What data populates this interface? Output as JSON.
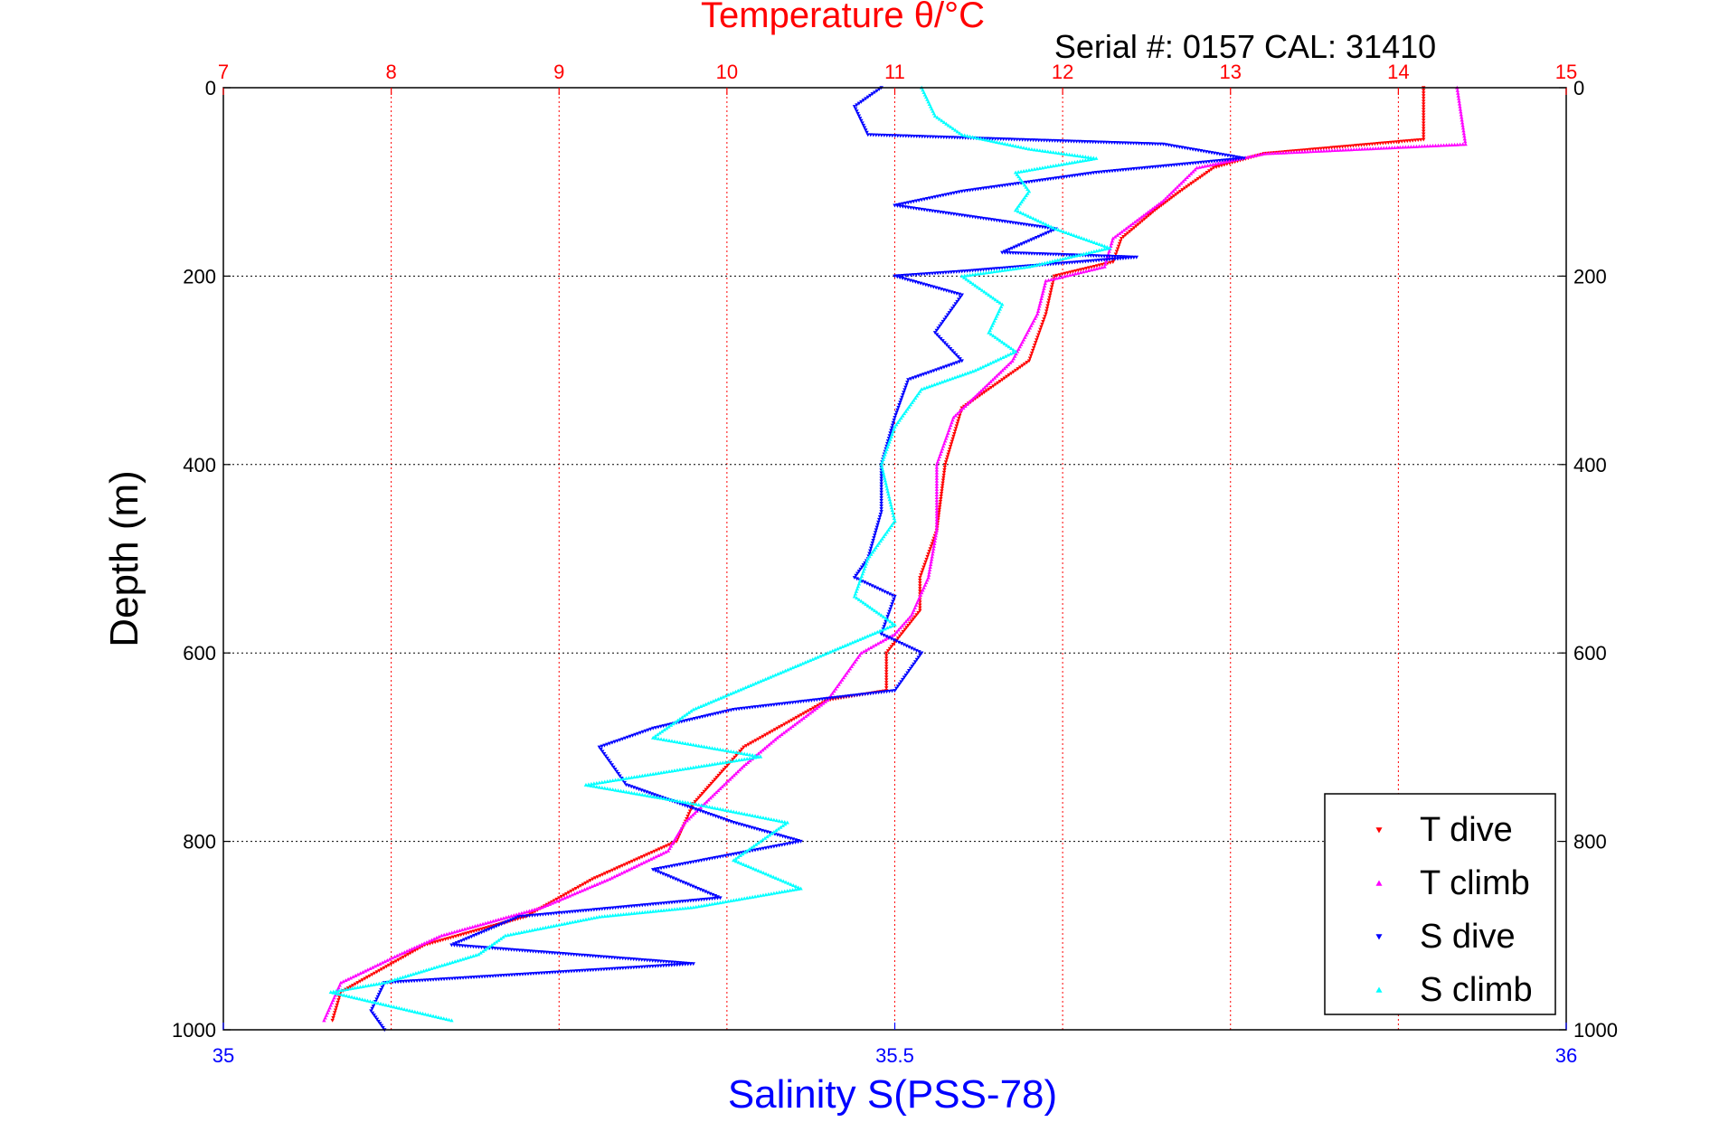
{
  "chart_data": {
    "type": "scatter",
    "title": "Temperature θ/°C",
    "subtitle": "Serial #: 0157  CAL: 31410",
    "xlabel": "Salinity S(PSS-78)",
    "ylabel": "Depth (m)",
    "top_axis": {
      "range": [
        7,
        15
      ],
      "ticks": [
        "7",
        "8",
        "9",
        "10",
        "11",
        "12",
        "13",
        "14",
        "15"
      ]
    },
    "bottom_axis": {
      "range": [
        35,
        36
      ],
      "ticks": [
        "35",
        "35.5",
        "36"
      ],
      "tick_values": [
        35,
        35.5,
        36
      ]
    },
    "y_axis": {
      "range": [
        0,
        1000
      ],
      "reversed": true,
      "ticks": [
        "0",
        "200",
        "400",
        "600",
        "800",
        "1000"
      ],
      "tick_values": [
        0,
        200,
        400,
        600,
        800,
        1000
      ]
    },
    "grid": true,
    "legend_position": "bottom-right",
    "series": [
      {
        "name": "T dive",
        "axis": "top",
        "marker": "triangle-down",
        "color": "#ff0000",
        "points": [
          [
            14.15,
            0
          ],
          [
            14.15,
            55
          ],
          [
            13.2,
            70
          ],
          [
            12.9,
            85
          ],
          [
            12.7,
            110
          ],
          [
            12.55,
            130
          ],
          [
            12.35,
            160
          ],
          [
            12.3,
            185
          ],
          [
            11.95,
            200
          ],
          [
            11.9,
            240
          ],
          [
            11.8,
            290
          ],
          [
            11.4,
            340
          ],
          [
            11.3,
            400
          ],
          [
            11.25,
            470
          ],
          [
            11.15,
            520
          ],
          [
            11.15,
            555
          ],
          [
            10.95,
            600
          ],
          [
            10.95,
            640
          ],
          [
            10.6,
            650
          ],
          [
            10.1,
            700
          ],
          [
            9.8,
            760
          ],
          [
            9.7,
            800
          ],
          [
            9.2,
            840
          ],
          [
            8.8,
            880
          ],
          [
            8.2,
            910
          ],
          [
            7.9,
            940
          ],
          [
            7.7,
            960
          ],
          [
            7.65,
            990
          ]
        ]
      },
      {
        "name": "T climb",
        "axis": "top",
        "marker": "triangle-up",
        "color": "#ff00ff",
        "points": [
          [
            14.35,
            0
          ],
          [
            14.4,
            60
          ],
          [
            13.2,
            70
          ],
          [
            12.8,
            85
          ],
          [
            12.6,
            120
          ],
          [
            12.3,
            160
          ],
          [
            12.25,
            190
          ],
          [
            11.9,
            205
          ],
          [
            11.85,
            240
          ],
          [
            11.7,
            290
          ],
          [
            11.35,
            350
          ],
          [
            11.25,
            400
          ],
          [
            11.25,
            470
          ],
          [
            11.2,
            520
          ],
          [
            11.1,
            560
          ],
          [
            11.0,
            580
          ],
          [
            10.8,
            600
          ],
          [
            10.6,
            650
          ],
          [
            10.3,
            690
          ],
          [
            10.1,
            720
          ],
          [
            9.75,
            780
          ],
          [
            9.65,
            810
          ],
          [
            9.3,
            840
          ],
          [
            8.9,
            870
          ],
          [
            8.3,
            900
          ],
          [
            8.05,
            920
          ],
          [
            7.7,
            950
          ],
          [
            7.6,
            990
          ]
        ]
      },
      {
        "name": "S dive",
        "axis": "bottom",
        "marker": "triangle-down",
        "color": "#0000ff",
        "points": [
          [
            35.49,
            0
          ],
          [
            35.47,
            20
          ],
          [
            35.48,
            50
          ],
          [
            35.7,
            60
          ],
          [
            35.76,
            75
          ],
          [
            35.65,
            90
          ],
          [
            35.55,
            110
          ],
          [
            35.5,
            125
          ],
          [
            35.62,
            150
          ],
          [
            35.58,
            175
          ],
          [
            35.68,
            180
          ],
          [
            35.55,
            195
          ],
          [
            35.5,
            200
          ],
          [
            35.55,
            220
          ],
          [
            35.53,
            260
          ],
          [
            35.55,
            290
          ],
          [
            35.51,
            310
          ],
          [
            35.5,
            350
          ],
          [
            35.49,
            400
          ],
          [
            35.49,
            450
          ],
          [
            35.48,
            500
          ],
          [
            35.47,
            520
          ],
          [
            35.5,
            540
          ],
          [
            35.49,
            580
          ],
          [
            35.52,
            600
          ],
          [
            35.5,
            640
          ],
          [
            35.38,
            660
          ],
          [
            35.32,
            680
          ],
          [
            35.28,
            700
          ],
          [
            35.3,
            740
          ],
          [
            35.38,
            780
          ],
          [
            35.43,
            800
          ],
          [
            35.32,
            830
          ],
          [
            35.37,
            860
          ],
          [
            35.22,
            880
          ],
          [
            35.17,
            910
          ],
          [
            35.35,
            930
          ],
          [
            35.12,
            950
          ],
          [
            35.11,
            980
          ],
          [
            35.12,
            1000
          ]
        ]
      },
      {
        "name": "S climb",
        "axis": "bottom",
        "marker": "triangle-up",
        "color": "#00ffff",
        "points": [
          [
            35.52,
            0
          ],
          [
            35.53,
            30
          ],
          [
            35.55,
            50
          ],
          [
            35.6,
            65
          ],
          [
            35.65,
            75
          ],
          [
            35.59,
            90
          ],
          [
            35.6,
            110
          ],
          [
            35.59,
            130
          ],
          [
            35.62,
            150
          ],
          [
            35.66,
            170
          ],
          [
            35.6,
            190
          ],
          [
            35.55,
            200
          ],
          [
            35.58,
            230
          ],
          [
            35.57,
            260
          ],
          [
            35.59,
            280
          ],
          [
            35.56,
            300
          ],
          [
            35.52,
            320
          ],
          [
            35.5,
            360
          ],
          [
            35.49,
            400
          ],
          [
            35.5,
            460
          ],
          [
            35.48,
            500
          ],
          [
            35.47,
            540
          ],
          [
            35.5,
            570
          ],
          [
            35.45,
            600
          ],
          [
            35.4,
            630
          ],
          [
            35.35,
            660
          ],
          [
            35.32,
            690
          ],
          [
            35.4,
            710
          ],
          [
            35.27,
            740
          ],
          [
            35.35,
            760
          ],
          [
            35.42,
            780
          ],
          [
            35.38,
            820
          ],
          [
            35.43,
            850
          ],
          [
            35.35,
            870
          ],
          [
            35.28,
            880
          ],
          [
            35.21,
            900
          ],
          [
            35.19,
            920
          ],
          [
            35.12,
            950
          ],
          [
            35.08,
            960
          ],
          [
            35.17,
            990
          ]
        ]
      }
    ]
  }
}
